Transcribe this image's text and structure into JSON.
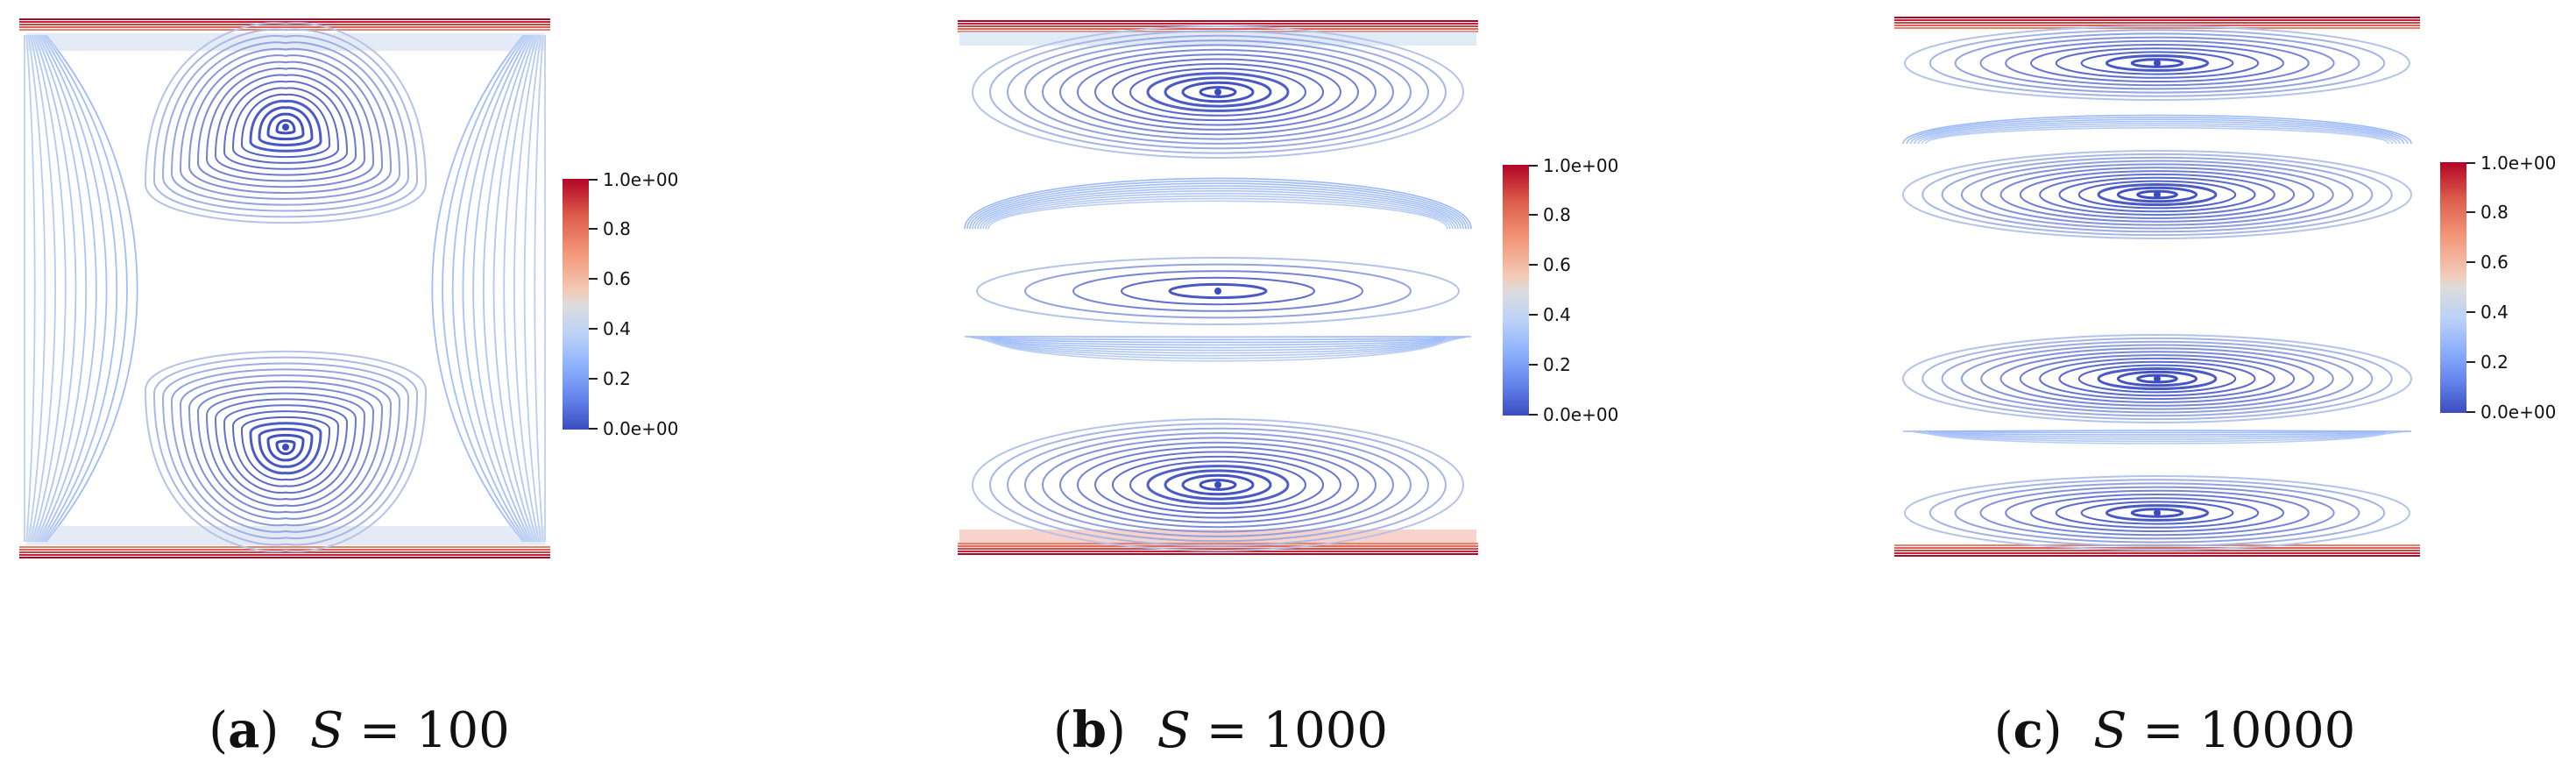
{
  "colors": {
    "hot": "#b40426",
    "warm": "#e8826a",
    "pale": "#c9d8f0",
    "mid": "#8db0fe",
    "cold": "#3b4cc0"
  },
  "colorbar": {
    "ticks": [
      "1.0e+00",
      "0.8",
      "0.6",
      "0.4",
      "0.2",
      "0.0e+00"
    ]
  },
  "panels": [
    {
      "id": "a",
      "tag": "a",
      "symbol": "S",
      "relation": "=",
      "value": "100",
      "pattern": "two-vortex-hourglass"
    },
    {
      "id": "b",
      "tag": "b",
      "symbol": "S",
      "relation": "=",
      "value": "1000",
      "pattern": "three-cell"
    },
    {
      "id": "c",
      "tag": "c",
      "symbol": "S",
      "relation": "=",
      "value": "10000",
      "pattern": "four-cell"
    }
  ]
}
